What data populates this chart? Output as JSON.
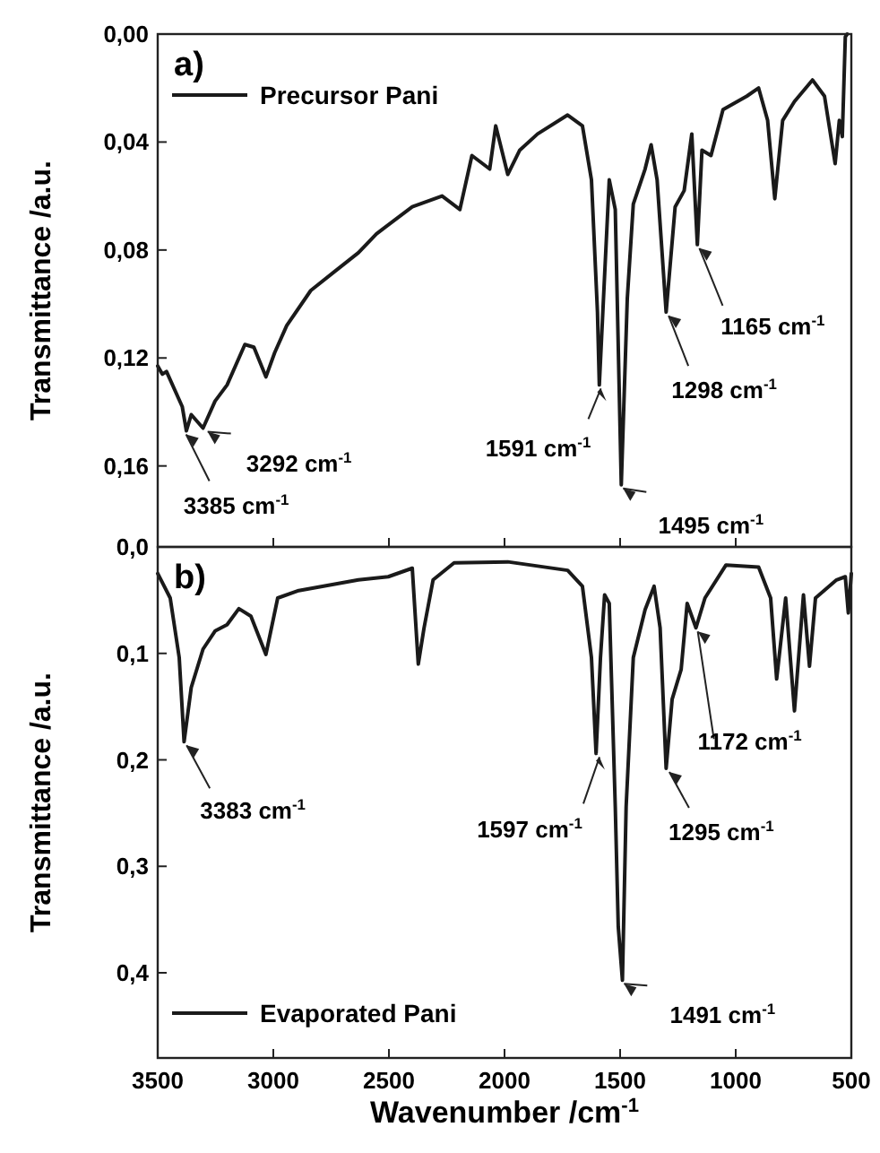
{
  "chart_data": [
    {
      "type": "line",
      "title": "a)",
      "ylabel": "Transmittance /a.u.",
      "xlim": [
        3500,
        500
      ],
      "xticks": [
        3500,
        3000,
        2500,
        2000,
        1500,
        1000,
        500
      ],
      "ylim": [
        0.19,
        0
      ],
      "yticks": [
        {
          "value": 0,
          "label": "0,00"
        },
        {
          "value": 0.04,
          "label": "0,04"
        },
        {
          "value": 0.08,
          "label": "0,08"
        },
        {
          "value": 0.12,
          "label": "0,12"
        },
        {
          "value": 0.16,
          "label": "0,16"
        }
      ],
      "tick_labels": "y",
      "legend": "top left",
      "grid": false,
      "series": [
        {
          "name": "Precursor Pani",
          "color": "#1a1a1a",
          "x": [
            3500,
            3480,
            3462,
            3394,
            3376,
            3355,
            3304,
            3252,
            3200,
            3123,
            3084,
            3032,
            2994,
            2942,
            2838,
            2735,
            2632,
            2554,
            2399,
            2270,
            2193,
            2141,
            2064,
            2038,
            1986,
            1934,
            1857,
            1727,
            1663,
            1624,
            1598,
            1590,
            1572,
            1547,
            1521,
            1495,
            1469,
            1443,
            1392,
            1366,
            1340,
            1301,
            1262,
            1223,
            1190,
            1166,
            1146,
            1107,
            1055,
            952,
            901,
            862,
            831,
            797,
            746,
            668,
            616,
            570,
            552,
            539,
            526,
            518
          ],
          "values": [
            0.123,
            0.126,
            0.125,
            0.138,
            0.147,
            0.141,
            0.146,
            0.136,
            0.13,
            0.115,
            0.116,
            0.127,
            0.118,
            0.108,
            0.095,
            0.088,
            0.081,
            0.074,
            0.064,
            0.06,
            0.065,
            0.045,
            0.05,
            0.034,
            0.052,
            0.043,
            0.037,
            0.03,
            0.034,
            0.054,
            0.103,
            0.13,
            0.098,
            0.054,
            0.065,
            0.167,
            0.098,
            0.063,
            0.05,
            0.041,
            0.054,
            0.103,
            0.064,
            0.058,
            0.037,
            0.078,
            0.043,
            0.045,
            0.028,
            0.023,
            0.02,
            0.032,
            0.061,
            0.032,
            0.025,
            0.017,
            0.023,
            0.048,
            0.032,
            0.038,
            0.001,
            0
          ]
        }
      ],
      "annotations": [
        {
          "text": "3385 cm$^{-1}$",
          "x": 3385,
          "y": 0.147
        },
        {
          "text": "3292 cm$^{-1}$",
          "x": 3292,
          "y": 0.146
        },
        {
          "text": "1591 cm$^{-1}$",
          "x": 1591,
          "y": 0.13
        },
        {
          "text": "1495 cm$^{-1}$",
          "x": 1495,
          "y": 0.167
        },
        {
          "text": "1298 cm$^{-1}$",
          "x": 1298,
          "y": 0.103
        },
        {
          "text": "1165 cm$^{-1}$",
          "x": 1165,
          "y": 0.078
        }
      ]
    },
    {
      "type": "line",
      "title": "b)",
      "xlabel": "Wavenumber /cm$^{-1}$",
      "ylabel": "Transmittance /a.u.",
      "xlim": [
        3500,
        500
      ],
      "xticks": [
        3500,
        3000,
        2500,
        2000,
        1500,
        1000,
        500
      ],
      "ylim": [
        0.48,
        0
      ],
      "yticks": [
        {
          "value": 0,
          "label": "0,0"
        },
        {
          "value": 0.1,
          "label": "0,1"
        },
        {
          "value": 0.2,
          "label": "0,2"
        },
        {
          "value": 0.3,
          "label": "0,3"
        },
        {
          "value": 0.4,
          "label": "0,4"
        }
      ],
      "legend": "bottom left",
      "grid": false,
      "series": [
        {
          "name": "Evaporated Pani",
          "color": "#1a1a1a",
          "x": [
            3500,
            3446,
            3407,
            3386,
            3355,
            3304,
            3252,
            3200,
            3149,
            3097,
            3032,
            2981,
            2890,
            2632,
            2503,
            2399,
            2373,
            2348,
            2309,
            2218,
            1986,
            1727,
            1663,
            1624,
            1604,
            1585,
            1567,
            1547,
            1521,
            1508,
            1490,
            1474,
            1443,
            1392,
            1353,
            1327,
            1301,
            1275,
            1236,
            1210,
            1172,
            1133,
            1042,
            901,
            849,
            823,
            784,
            746,
            707,
            681,
            655,
            564,
            526,
            513,
            500
          ],
          "values": [
            0.025,
            0.048,
            0.104,
            0.183,
            0.132,
            0.096,
            0.079,
            0.073,
            0.058,
            0.065,
            0.101,
            0.048,
            0.041,
            0.031,
            0.028,
            0.02,
            0.11,
            0.076,
            0.031,
            0.015,
            0.014,
            0.022,
            0.037,
            0.104,
            0.194,
            0.104,
            0.045,
            0.053,
            0.244,
            0.357,
            0.407,
            0.244,
            0.104,
            0.059,
            0.037,
            0.076,
            0.208,
            0.143,
            0.115,
            0.053,
            0.076,
            0.048,
            0.017,
            0.019,
            0.048,
            0.124,
            0.048,
            0.154,
            0.045,
            0.112,
            0.048,
            0.031,
            0.028,
            0.062,
            0.025
          ]
        }
      ],
      "annotations": [
        {
          "text": "3383 cm$^{-1}$",
          "x": 3383,
          "y": 0.183
        },
        {
          "text": "1597 cm$^{-1}$",
          "x": 1597,
          "y": 0.194
        },
        {
          "text": "1295 cm$^{-1}$",
          "x": 1295,
          "y": 0.208
        },
        {
          "text": "1172 cm$^{-1}$",
          "x": 1172,
          "y": 0.076
        },
        {
          "text": "1491 cm$^{-1}$",
          "x": 1491,
          "y": 0.407
        }
      ]
    }
  ]
}
